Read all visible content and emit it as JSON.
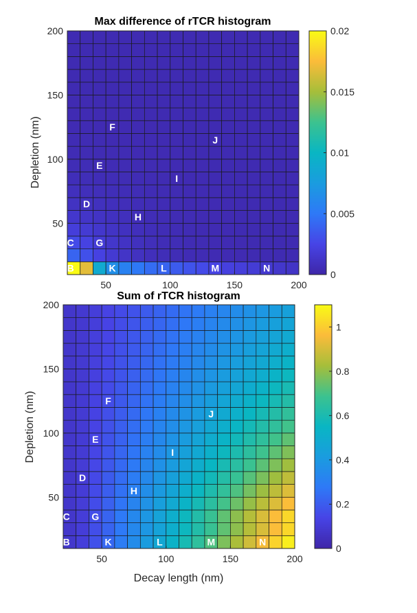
{
  "chart_data": [
    {
      "type": "heatmap",
      "title": "Max difference of rTCR histogram",
      "xlabel": "",
      "ylabel": "Depletion (nm)",
      "xlim": [
        20,
        200
      ],
      "ylim": [
        10,
        200
      ],
      "x_ticks": [
        "50",
        "100",
        "150",
        "200"
      ],
      "y_ticks": [
        "50",
        "100",
        "150",
        "200"
      ],
      "grid": {
        "cols": 18,
        "rows": 19
      },
      "colorbar": {
        "range": [
          0,
          0.02
        ],
        "ticks": [
          "0",
          "0.005",
          "0.01",
          "0.015",
          "0.02"
        ]
      },
      "annotations": [
        {
          "label": "B",
          "x": 22.5,
          "y": 15
        },
        {
          "label": "C",
          "x": 22.5,
          "y": 35
        },
        {
          "label": "D",
          "x": 35,
          "y": 65
        },
        {
          "label": "E",
          "x": 45,
          "y": 95
        },
        {
          "label": "F",
          "x": 55,
          "y": 125
        },
        {
          "label": "G",
          "x": 45,
          "y": 35
        },
        {
          "label": "H",
          "x": 75,
          "y": 55
        },
        {
          "label": "I",
          "x": 105,
          "y": 85
        },
        {
          "label": "J",
          "x": 135,
          "y": 115
        },
        {
          "label": "K",
          "x": 55,
          "y": 15
        },
        {
          "label": "L",
          "x": 95,
          "y": 15
        },
        {
          "label": "M",
          "x": 135,
          "y": 15
        },
        {
          "label": "N",
          "x": 175,
          "y": 15
        }
      ]
    },
    {
      "type": "heatmap",
      "title": "Sum of rTCR histogram",
      "xlabel": "Decay length (nm)",
      "ylabel": "Depletion (nm)",
      "xlim": [
        20,
        200
      ],
      "ylim": [
        10,
        200
      ],
      "x_ticks": [
        "50",
        "100",
        "150",
        "200"
      ],
      "y_ticks": [
        "50",
        "100",
        "150",
        "200"
      ],
      "grid": {
        "cols": 18,
        "rows": 19
      },
      "colorbar": {
        "range": [
          0,
          1.1
        ],
        "ticks": [
          "0",
          "0.2",
          "0.4",
          "0.6",
          "0.8",
          "1"
        ]
      },
      "annotations": [
        {
          "label": "B",
          "x": 22.5,
          "y": 15
        },
        {
          "label": "C",
          "x": 22.5,
          "y": 35
        },
        {
          "label": "D",
          "x": 35,
          "y": 65
        },
        {
          "label": "E",
          "x": 45,
          "y": 95
        },
        {
          "label": "F",
          "x": 55,
          "y": 125
        },
        {
          "label": "G",
          "x": 45,
          "y": 35
        },
        {
          "label": "H",
          "x": 75,
          "y": 55
        },
        {
          "label": "I",
          "x": 105,
          "y": 85
        },
        {
          "label": "J",
          "x": 135,
          "y": 115
        },
        {
          "label": "K",
          "x": 55,
          "y": 15
        },
        {
          "label": "L",
          "x": 95,
          "y": 15
        },
        {
          "label": "M",
          "x": 135,
          "y": 15
        },
        {
          "label": "N",
          "x": 175,
          "y": 15
        }
      ]
    }
  ]
}
